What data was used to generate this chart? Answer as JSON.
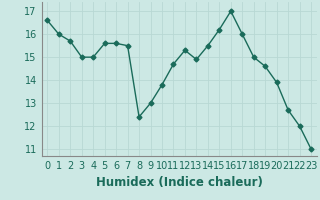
{
  "x": [
    0,
    1,
    2,
    3,
    4,
    5,
    6,
    7,
    8,
    9,
    10,
    11,
    12,
    13,
    14,
    15,
    16,
    17,
    18,
    19,
    20,
    21,
    22,
    23
  ],
  "y": [
    16.6,
    16.0,
    15.7,
    15.0,
    15.0,
    15.6,
    15.6,
    15.5,
    12.4,
    13.0,
    13.8,
    14.7,
    15.3,
    14.9,
    15.5,
    16.2,
    17.0,
    16.0,
    15.0,
    14.6,
    13.9,
    12.7,
    12.0,
    11.0
  ],
  "line_color": "#1a6b5a",
  "marker": "D",
  "marker_size": 2.5,
  "bg_color": "#cce8e4",
  "grid_color": "#b8d8d4",
  "xlabel": "Humidex (Indice chaleur)",
  "ylim": [
    10.7,
    17.4
  ],
  "xlim": [
    -0.5,
    23.5
  ],
  "yticks": [
    11,
    12,
    13,
    14,
    15,
    16,
    17
  ],
  "xtick_labels": [
    "0",
    "1",
    "2",
    "3",
    "4",
    "5",
    "6",
    "7",
    "8",
    "9",
    "10",
    "11",
    "12",
    "13",
    "14",
    "15",
    "16",
    "17",
    "18",
    "19",
    "20",
    "21",
    "22",
    "23"
  ],
  "tick_fontsize": 7,
  "xlabel_fontsize": 8.5,
  "linewidth": 1.0
}
